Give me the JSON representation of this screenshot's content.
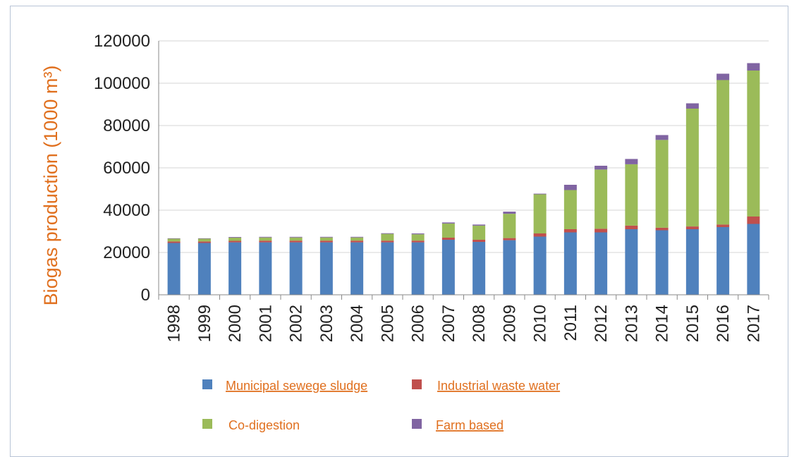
{
  "chart_data": {
    "type": "bar",
    "stacked": true,
    "ylabel": "Biogas production (1000 m³)",
    "xlabel": "",
    "ylim": [
      0,
      120000
    ],
    "yticks": [
      0,
      20000,
      40000,
      60000,
      80000,
      100000,
      120000
    ],
    "grid": true,
    "legend_position": "bottom",
    "categories": [
      "1998",
      "1999",
      "2000",
      "2001",
      "2002",
      "2003",
      "2004",
      "2005",
      "2006",
      "2007",
      "2008",
      "2009",
      "2010",
      "2011",
      "2012",
      "2013",
      "2014",
      "2015",
      "2016",
      "2017"
    ],
    "series": [
      {
        "name": "Municipal sewege sludge",
        "color": "#4f81bd",
        "values": [
          24500,
          24500,
          24800,
          24800,
          24800,
          24800,
          24800,
          24800,
          24800,
          26000,
          25000,
          25800,
          27500,
          29500,
          29500,
          31000,
          30500,
          31000,
          32000,
          33500
        ]
      },
      {
        "name": "Industrial waste water",
        "color": "#c0504d",
        "values": [
          700,
          700,
          700,
          800,
          800,
          800,
          800,
          800,
          800,
          1000,
          1000,
          1000,
          1500,
          1500,
          1700,
          1700,
          1200,
          1300,
          1200,
          3500
        ]
      },
      {
        "name": "Co-digestion",
        "color": "#9bbb59",
        "values": [
          1300,
          1300,
          1500,
          1500,
          1500,
          1500,
          1500,
          3200,
          3000,
          6700,
          6700,
          11500,
          18500,
          18500,
          28000,
          29000,
          41500,
          55700,
          68300,
          69000
        ]
      },
      {
        "name": "Farm based",
        "color": "#8064a2",
        "values": [
          200,
          200,
          300,
          300,
          300,
          300,
          300,
          300,
          400,
          500,
          500,
          1000,
          300,
          2500,
          1800,
          2500,
          2300,
          2500,
          3000,
          3500
        ]
      }
    ]
  }
}
